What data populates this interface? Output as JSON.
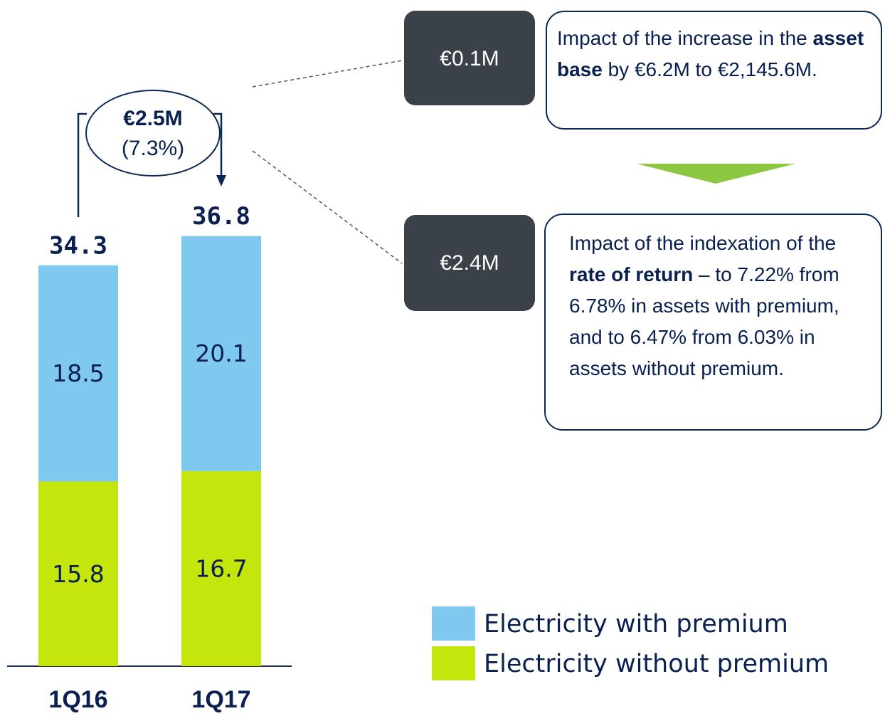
{
  "chart_data": {
    "type": "stacked_bar",
    "categories": [
      "1Q16",
      "1Q17"
    ],
    "series": [
      {
        "name": "Electricity without premium",
        "color": "#c4e60c",
        "values": [
          15.8,
          16.7
        ]
      },
      {
        "name": "Electricity with premium",
        "color": "#7fc8f0",
        "values": [
          18.5,
          20.1
        ]
      }
    ],
    "totals": [
      34.3,
      36.8
    ],
    "ylim": [
      0,
      57
    ],
    "change": {
      "amount": "€2.5M",
      "percent": "(7.3%)"
    }
  },
  "callouts": [
    {
      "amount": "€0.1M",
      "text_parts": [
        "Impact of the increase in the ",
        "asset base",
        " by €6.2M to €2,145.6M."
      ]
    },
    {
      "amount": "€2.4M",
      "text_parts": [
        "Impact of the indexation of the ",
        "rate of return",
        " – to 7.22% from 6.78% in assets with premium, and to 6.47% from 6.03% in assets without premium."
      ]
    }
  ]
}
